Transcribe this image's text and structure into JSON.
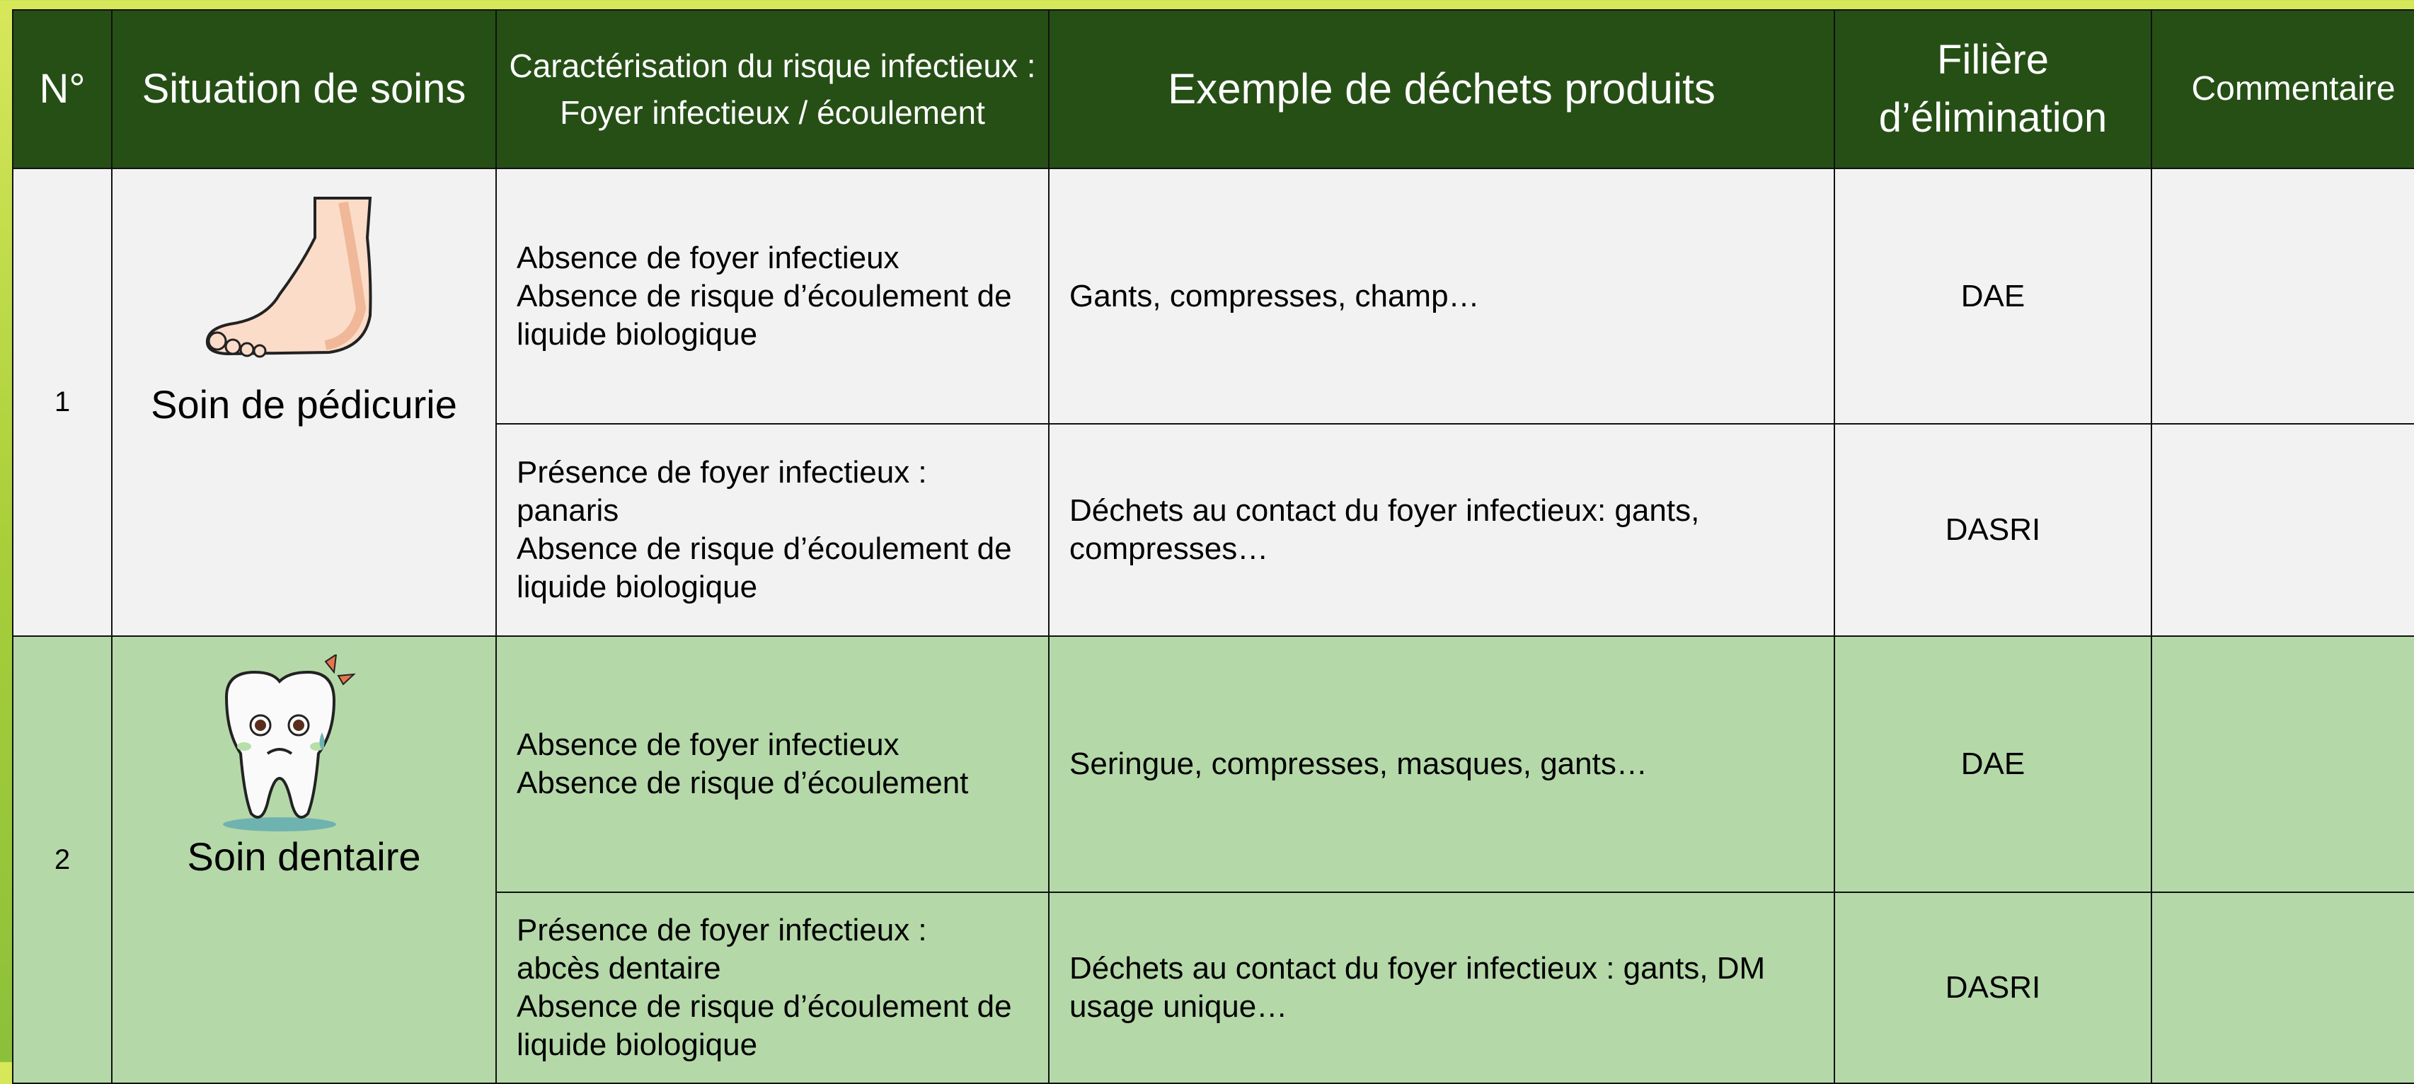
{
  "header": {
    "columns": [
      [
        "N°"
      ],
      [
        "Situation de soins"
      ],
      [
        "Caractérisation du risque infectieux :",
        "Foyer infectieux / écoulement"
      ],
      [
        "Exemple de déchets produits"
      ],
      [
        "Filière d’élimination"
      ],
      [
        "Commentaire"
      ]
    ]
  },
  "table": {
    "rows": [
      {
        "number": 1,
        "situation": "Soin de pédicurie",
        "cases": [
          {
            "risk": [
              "Absence de foyer infectieux",
              "Absence de risque d’écoulement de liquide biologique"
            ],
            "waste": "Gants, compresses, champ…",
            "channel": "DAE"
          },
          {
            "risk": [
              "Présence de foyer infectieux :",
              "panaris",
              "Absence de risque d’écoulement de liquide biologique"
            ],
            "waste": "Déchets au contact du foyer infectieux:  gants, compresses…",
            "channel": "DASRI"
          }
        ]
      },
      {
        "number": 2,
        "situation": "Soin dentaire",
        "cases": [
          {
            "risk": [
              "Absence  de foyer infectieux",
              "Absence de risque d’écoulement"
            ],
            "waste": "Seringue, compresses, masques, gants…",
            "channel": "DAE"
          },
          {
            "risk": [
              "Présence de foyer infectieux :",
              "abcès dentaire",
              "Absence de risque d’écoulement de liquide biologique"
            ],
            "waste": "Déchets au contact du foyer infectieux : gants, DM usage unique…",
            "channel": "DASRI"
          }
        ]
      }
    ]
  }
}
